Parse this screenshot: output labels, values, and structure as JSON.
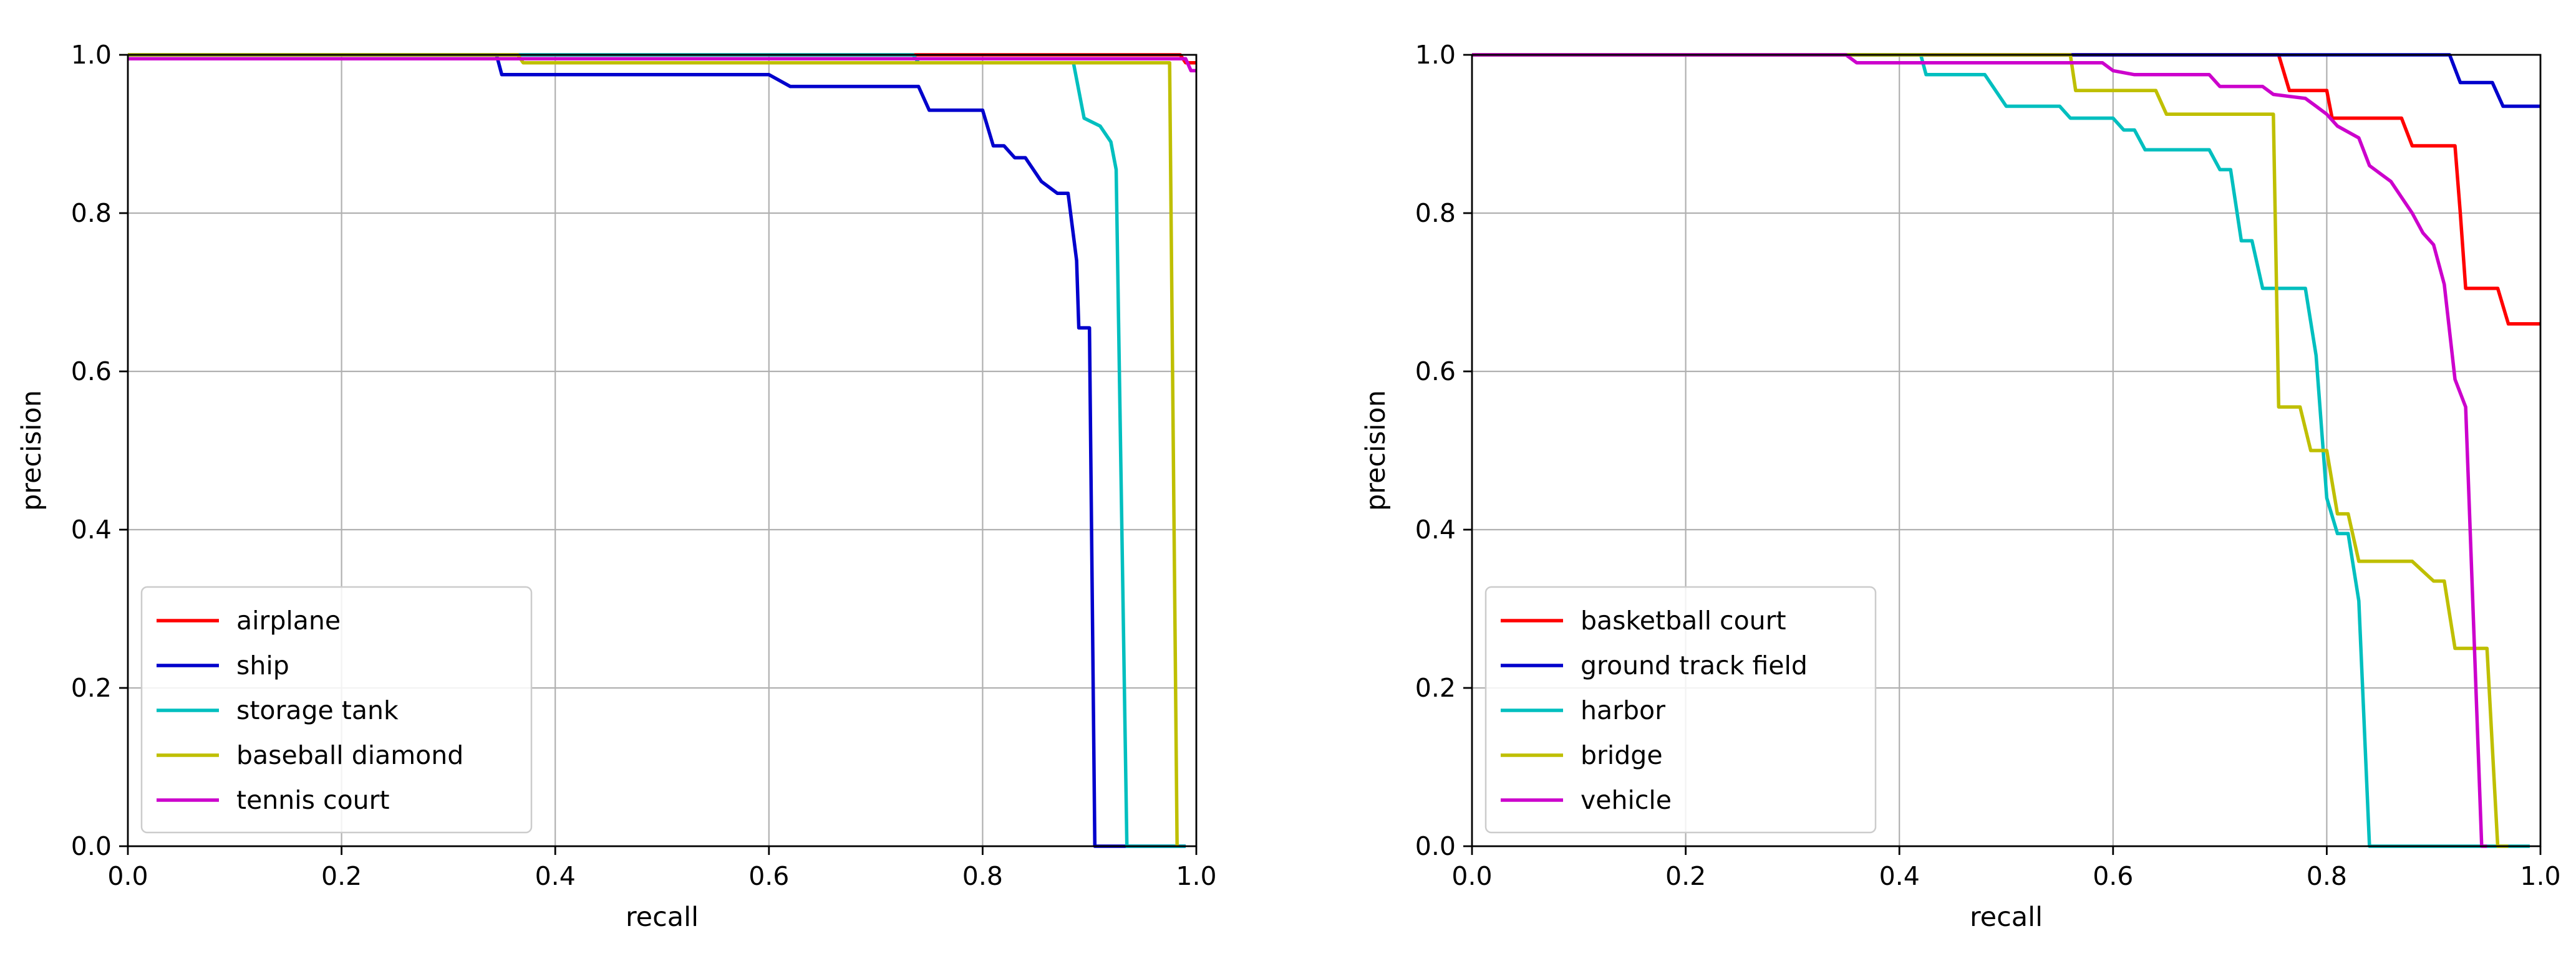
{
  "chart_data": [
    {
      "type": "line",
      "xlabel": "recall",
      "ylabel": "precision",
      "xlim": [
        0,
        1
      ],
      "ylim": [
        0,
        1
      ],
      "xticks": [
        0.0,
        0.2,
        0.4,
        0.6,
        0.8,
        1.0
      ],
      "yticks": [
        0.0,
        0.2,
        0.4,
        0.6,
        0.8,
        1.0
      ],
      "xtick_labels": [
        "0.0",
        "0.2",
        "0.4",
        "0.6",
        "0.8",
        "1.0"
      ],
      "ytick_labels": [
        "0.0",
        "0.2",
        "0.4",
        "0.6",
        "0.8",
        "1.0"
      ],
      "grid": true,
      "legend_position": "lower-left",
      "series": [
        {
          "name": "airplane",
          "color": "#ff0000",
          "points": [
            [
              0,
              1.0
            ],
            [
              0.985,
              1.0
            ],
            [
              0.99,
              0.99
            ],
            [
              1.0,
              0.99
            ]
          ]
        },
        {
          "name": "ship",
          "color": "#0000cc",
          "points": [
            [
              0,
              1.0
            ],
            [
              0.345,
              1.0
            ],
            [
              0.35,
              0.975
            ],
            [
              0.6,
              0.975
            ],
            [
              0.62,
              0.96
            ],
            [
              0.74,
              0.96
            ],
            [
              0.75,
              0.93
            ],
            [
              0.8,
              0.93
            ],
            [
              0.81,
              0.885
            ],
            [
              0.82,
              0.885
            ],
            [
              0.83,
              0.87
            ],
            [
              0.84,
              0.87
            ],
            [
              0.855,
              0.84
            ],
            [
              0.87,
              0.825
            ],
            [
              0.88,
              0.825
            ],
            [
              0.888,
              0.74
            ],
            [
              0.89,
              0.655
            ],
            [
              0.9,
              0.655
            ],
            [
              0.905,
              0.0
            ],
            [
              0.99,
              0.0
            ]
          ]
        },
        {
          "name": "storage tank",
          "color": "#00bfbf",
          "points": [
            [
              0,
              1.0
            ],
            [
              0.735,
              1.0
            ],
            [
              0.74,
              0.99
            ],
            [
              0.885,
              0.99
            ],
            [
              0.895,
              0.92
            ],
            [
              0.91,
              0.91
            ],
            [
              0.92,
              0.89
            ],
            [
              0.925,
              0.855
            ],
            [
              0.935,
              0.0
            ],
            [
              0.99,
              0.0
            ]
          ]
        },
        {
          "name": "baseball diamond",
          "color": "#bfbf00",
          "points": [
            [
              0,
              1.0
            ],
            [
              0.365,
              1.0
            ],
            [
              0.37,
              0.99
            ],
            [
              0.975,
              0.99
            ],
            [
              0.982,
              0.0
            ]
          ]
        },
        {
          "name": "tennis court",
          "color": "#cc00cc",
          "points": [
            [
              0,
              0.995
            ],
            [
              0.99,
              0.995
            ],
            [
              0.995,
              0.98
            ],
            [
              1.0,
              0.98
            ]
          ]
        }
      ]
    },
    {
      "type": "line",
      "xlabel": "recall",
      "ylabel": "precision",
      "xlim": [
        0,
        1
      ],
      "ylim": [
        0,
        1
      ],
      "xticks": [
        0.0,
        0.2,
        0.4,
        0.6,
        0.8,
        1.0
      ],
      "yticks": [
        0.0,
        0.2,
        0.4,
        0.6,
        0.8,
        1.0
      ],
      "xtick_labels": [
        "0.0",
        "0.2",
        "0.4",
        "0.6",
        "0.8",
        "1.0"
      ],
      "ytick_labels": [
        "0.0",
        "0.2",
        "0.4",
        "0.6",
        "0.8",
        "1.0"
      ],
      "grid": true,
      "legend_position": "lower-left",
      "series": [
        {
          "name": "basketball court",
          "color": "#ff0000",
          "points": [
            [
              0,
              1.0
            ],
            [
              0.755,
              1.0
            ],
            [
              0.765,
              0.955
            ],
            [
              0.8,
              0.955
            ],
            [
              0.805,
              0.92
            ],
            [
              0.87,
              0.92
            ],
            [
              0.88,
              0.885
            ],
            [
              0.92,
              0.885
            ],
            [
              0.925,
              0.8
            ],
            [
              0.93,
              0.705
            ],
            [
              0.96,
              0.705
            ],
            [
              0.97,
              0.66
            ],
            [
              1.0,
              0.66
            ]
          ]
        },
        {
          "name": "ground track field",
          "color": "#0000cc",
          "points": [
            [
              0,
              1.0
            ],
            [
              0.915,
              1.0
            ],
            [
              0.925,
              0.965
            ],
            [
              0.955,
              0.965
            ],
            [
              0.965,
              0.935
            ],
            [
              1.0,
              0.935
            ]
          ]
        },
        {
          "name": "harbor",
          "color": "#00bfbf",
          "points": [
            [
              0,
              1.0
            ],
            [
              0.42,
              1.0
            ],
            [
              0.425,
              0.975
            ],
            [
              0.48,
              0.975
            ],
            [
              0.5,
              0.935
            ],
            [
              0.55,
              0.935
            ],
            [
              0.56,
              0.92
            ],
            [
              0.6,
              0.92
            ],
            [
              0.61,
              0.905
            ],
            [
              0.62,
              0.905
            ],
            [
              0.63,
              0.88
            ],
            [
              0.69,
              0.88
            ],
            [
              0.7,
              0.855
            ],
            [
              0.71,
              0.855
            ],
            [
              0.72,
              0.765
            ],
            [
              0.73,
              0.765
            ],
            [
              0.74,
              0.705
            ],
            [
              0.77,
              0.705
            ],
            [
              0.78,
              0.705
            ],
            [
              0.79,
              0.62
            ],
            [
              0.8,
              0.44
            ],
            [
              0.81,
              0.395
            ],
            [
              0.82,
              0.395
            ],
            [
              0.83,
              0.31
            ],
            [
              0.84,
              0.0
            ],
            [
              0.99,
              0.0
            ]
          ]
        },
        {
          "name": "bridge",
          "color": "#bfbf00",
          "points": [
            [
              0,
              1.0
            ],
            [
              0.56,
              1.0
            ],
            [
              0.565,
              0.955
            ],
            [
              0.64,
              0.955
            ],
            [
              0.65,
              0.925
            ],
            [
              0.75,
              0.925
            ],
            [
              0.755,
              0.555
            ],
            [
              0.775,
              0.555
            ],
            [
              0.785,
              0.5
            ],
            [
              0.8,
              0.5
            ],
            [
              0.81,
              0.42
            ],
            [
              0.82,
              0.42
            ],
            [
              0.83,
              0.36
            ],
            [
              0.88,
              0.36
            ],
            [
              0.9,
              0.335
            ],
            [
              0.91,
              0.335
            ],
            [
              0.92,
              0.25
            ],
            [
              0.95,
              0.25
            ],
            [
              0.96,
              0.0
            ],
            [
              0.97,
              0.0
            ]
          ]
        },
        {
          "name": "vehicle",
          "color": "#cc00cc",
          "points": [
            [
              0,
              1.0
            ],
            [
              0.35,
              1.0
            ],
            [
              0.36,
              0.99
            ],
            [
              0.59,
              0.99
            ],
            [
              0.6,
              0.98
            ],
            [
              0.62,
              0.975
            ],
            [
              0.69,
              0.975
            ],
            [
              0.7,
              0.96
            ],
            [
              0.74,
              0.96
            ],
            [
              0.75,
              0.95
            ],
            [
              0.78,
              0.945
            ],
            [
              0.79,
              0.935
            ],
            [
              0.8,
              0.925
            ],
            [
              0.81,
              0.91
            ],
            [
              0.83,
              0.895
            ],
            [
              0.84,
              0.86
            ],
            [
              0.86,
              0.84
            ],
            [
              0.87,
              0.82
            ],
            [
              0.88,
              0.8
            ],
            [
              0.89,
              0.775
            ],
            [
              0.9,
              0.76
            ],
            [
              0.91,
              0.71
            ],
            [
              0.92,
              0.59
            ],
            [
              0.93,
              0.555
            ],
            [
              0.945,
              0.0
            ],
            [
              0.95,
              0.0
            ]
          ]
        }
      ]
    }
  ]
}
